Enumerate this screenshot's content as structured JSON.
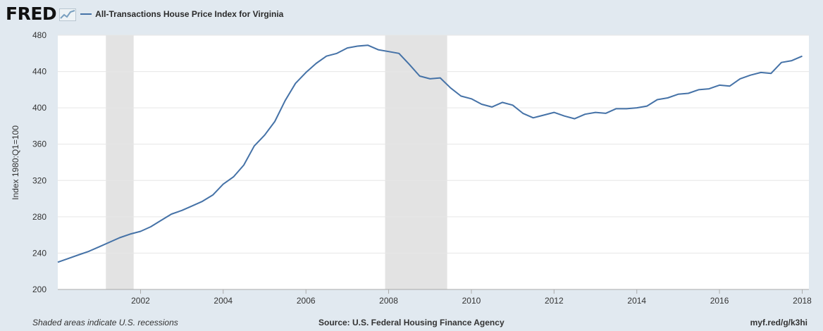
{
  "header": {
    "logo_text": "FRED",
    "logo_icon": "chart-line-icon"
  },
  "footer": {
    "note": "Shaded areas indicate U.S. recessions",
    "source": "Source: U.S. Federal Housing Finance Agency",
    "short_url": "myf.red/g/k3hi"
  },
  "colors": {
    "series": "#4572a7",
    "recession": "#e3e3e3",
    "plot_background": "#ffffff",
    "page_background": "#e1e9f0",
    "grid": "#e6e6e6"
  },
  "chart_data": {
    "type": "line",
    "title": "",
    "xlabel": "",
    "ylabel": "Index 1980:Q1=100",
    "xlim": [
      "2000-01-01",
      "2018-03-01"
    ],
    "ylim": [
      200,
      480
    ],
    "yticks": [
      200,
      240,
      280,
      320,
      360,
      400,
      440,
      480
    ],
    "xticks": [
      {
        "date": "2002-01-01",
        "label": "2002"
      },
      {
        "date": "2004-01-01",
        "label": "2004"
      },
      {
        "date": "2006-01-01",
        "label": "2006"
      },
      {
        "date": "2008-01-01",
        "label": "2008"
      },
      {
        "date": "2010-01-01",
        "label": "2010"
      },
      {
        "date": "2012-01-01",
        "label": "2012"
      },
      {
        "date": "2014-01-01",
        "label": "2014"
      },
      {
        "date": "2016-01-01",
        "label": "2016"
      },
      {
        "date": "2018-01-01",
        "label": "2018"
      }
    ],
    "grid": true,
    "legend": "top-left",
    "recessions": [
      {
        "start": "2001-03-01",
        "end": "2001-11-01"
      },
      {
        "start": "2007-12-01",
        "end": "2009-06-01"
      }
    ],
    "series": [
      {
        "name": "All-Transactions House Price Index for Virginia",
        "x": [
          "2000-01-01",
          "2000-04-01",
          "2000-07-01",
          "2000-10-01",
          "2001-01-01",
          "2001-04-01",
          "2001-07-01",
          "2001-10-01",
          "2002-01-01",
          "2002-04-01",
          "2002-07-01",
          "2002-10-01",
          "2003-01-01",
          "2003-04-01",
          "2003-07-01",
          "2003-10-01",
          "2004-01-01",
          "2004-04-01",
          "2004-07-01",
          "2004-10-01",
          "2005-01-01",
          "2005-04-01",
          "2005-07-01",
          "2005-10-01",
          "2006-01-01",
          "2006-04-01",
          "2006-07-01",
          "2006-10-01",
          "2007-01-01",
          "2007-04-01",
          "2007-07-01",
          "2007-10-01",
          "2008-01-01",
          "2008-04-01",
          "2008-07-01",
          "2008-10-01",
          "2009-01-01",
          "2009-04-01",
          "2009-07-01",
          "2009-10-01",
          "2010-01-01",
          "2010-04-01",
          "2010-07-01",
          "2010-10-01",
          "2011-01-01",
          "2011-04-01",
          "2011-07-01",
          "2011-10-01",
          "2012-01-01",
          "2012-04-01",
          "2012-07-01",
          "2012-10-01",
          "2013-01-01",
          "2013-04-01",
          "2013-07-01",
          "2013-10-01",
          "2014-01-01",
          "2014-04-01",
          "2014-07-01",
          "2014-10-01",
          "2015-01-01",
          "2015-04-01",
          "2015-07-01",
          "2015-10-01",
          "2016-01-01",
          "2016-04-01",
          "2016-07-01",
          "2016-10-01",
          "2017-01-01",
          "2017-04-01",
          "2017-07-01",
          "2017-10-01",
          "2018-01-01"
        ],
        "y": [
          230,
          234,
          238,
          242,
          247,
          252,
          257,
          261,
          264,
          269,
          276,
          283,
          287,
          292,
          297,
          304,
          316,
          324,
          337,
          358,
          370,
          385,
          408,
          427,
          439,
          449,
          457,
          460,
          466,
          468,
          469,
          464,
          462,
          460,
          448,
          435,
          432,
          433,
          422,
          413,
          410,
          404,
          401,
          406,
          403,
          394,
          389,
          392,
          395,
          391,
          388,
          393,
          395,
          394,
          399,
          399,
          400,
          402,
          409,
          411,
          415,
          416,
          420,
          421,
          425,
          424,
          432,
          436,
          439,
          438,
          450,
          452,
          457
        ]
      }
    ]
  }
}
